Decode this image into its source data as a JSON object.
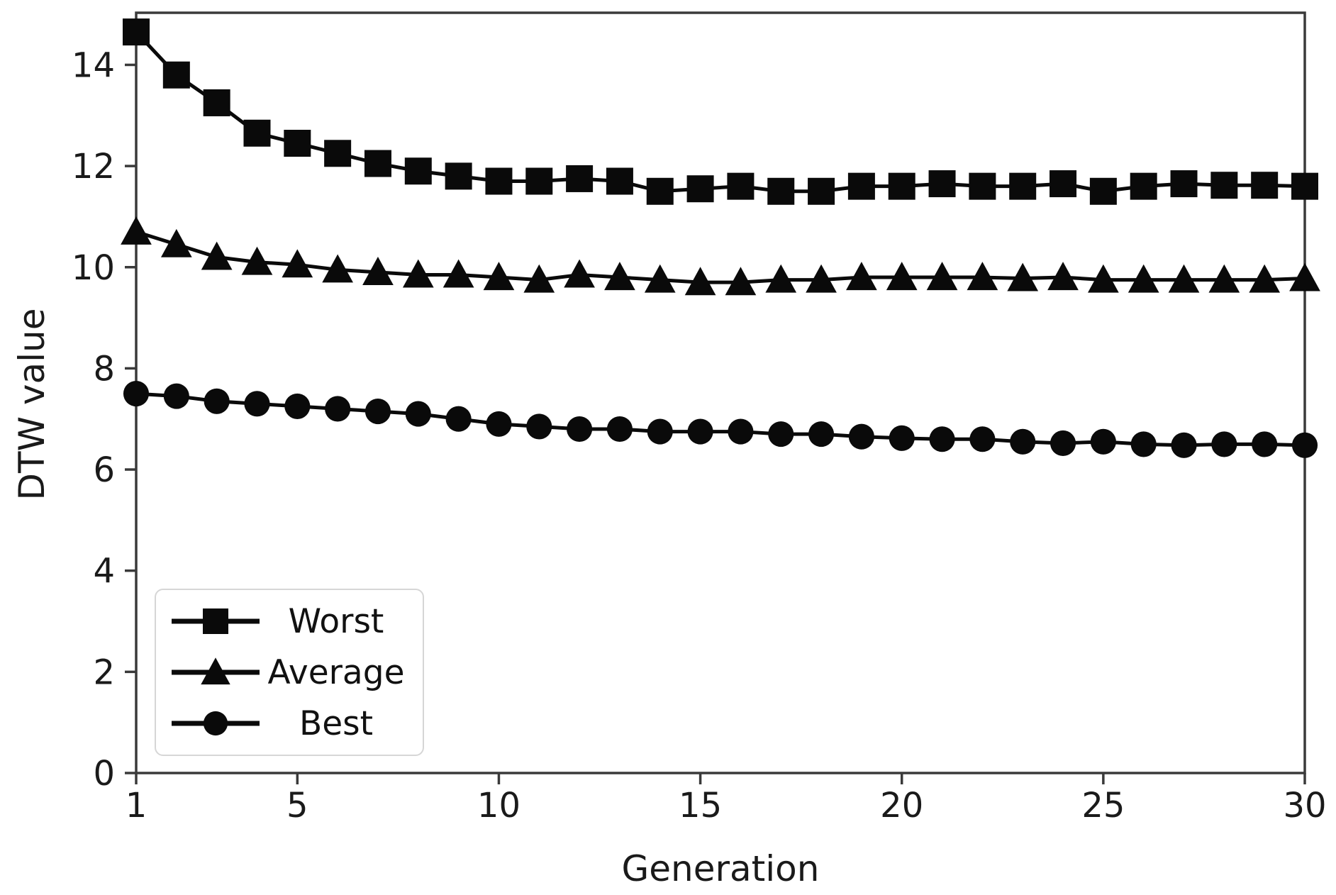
{
  "figure": {
    "background": "#ffffff"
  },
  "chart_data": {
    "type": "line",
    "title": "",
    "xlabel": "Generation",
    "ylabel": "DTW value",
    "x": [
      1,
      2,
      3,
      4,
      5,
      6,
      7,
      8,
      9,
      10,
      11,
      12,
      13,
      14,
      15,
      16,
      17,
      18,
      19,
      20,
      21,
      22,
      23,
      24,
      25,
      26,
      27,
      28,
      29,
      30
    ],
    "series": [
      {
        "name": "Worst",
        "marker": "square",
        "values": [
          14.65,
          13.8,
          13.25,
          12.65,
          12.45,
          12.25,
          12.05,
          11.9,
          11.8,
          11.7,
          11.7,
          11.75,
          11.7,
          11.5,
          11.55,
          11.6,
          11.5,
          11.5,
          11.6,
          11.6,
          11.65,
          11.6,
          11.6,
          11.65,
          11.5,
          11.6,
          11.65,
          11.62,
          11.62,
          11.6
        ]
      },
      {
        "name": "Average",
        "marker": "triangle",
        "values": [
          10.7,
          10.45,
          10.2,
          10.1,
          10.05,
          9.95,
          9.9,
          9.85,
          9.85,
          9.8,
          9.75,
          9.85,
          9.8,
          9.75,
          9.7,
          9.7,
          9.75,
          9.75,
          9.8,
          9.8,
          9.8,
          9.8,
          9.78,
          9.8,
          9.75,
          9.75,
          9.75,
          9.75,
          9.75,
          9.78
        ]
      },
      {
        "name": "Best",
        "marker": "circle",
        "values": [
          7.5,
          7.45,
          7.35,
          7.3,
          7.25,
          7.2,
          7.15,
          7.1,
          7.0,
          6.9,
          6.85,
          6.8,
          6.8,
          6.75,
          6.75,
          6.75,
          6.7,
          6.7,
          6.65,
          6.62,
          6.6,
          6.6,
          6.55,
          6.52,
          6.55,
          6.5,
          6.48,
          6.5,
          6.5,
          6.48
        ]
      }
    ],
    "xticks": [
      1,
      5,
      10,
      15,
      20,
      25,
      30
    ],
    "yticks": [
      0,
      2,
      4,
      6,
      8,
      10,
      12,
      14
    ],
    "xlim": [
      1,
      30
    ],
    "ylim": [
      0,
      15.03
    ],
    "grid": false,
    "legend_position": "lower-left",
    "line_color": "#0a0a0a",
    "marker_color": "#0a0a0a",
    "axis_color": "#3a3a3a",
    "tick_label_color": "#1a1a1a"
  }
}
